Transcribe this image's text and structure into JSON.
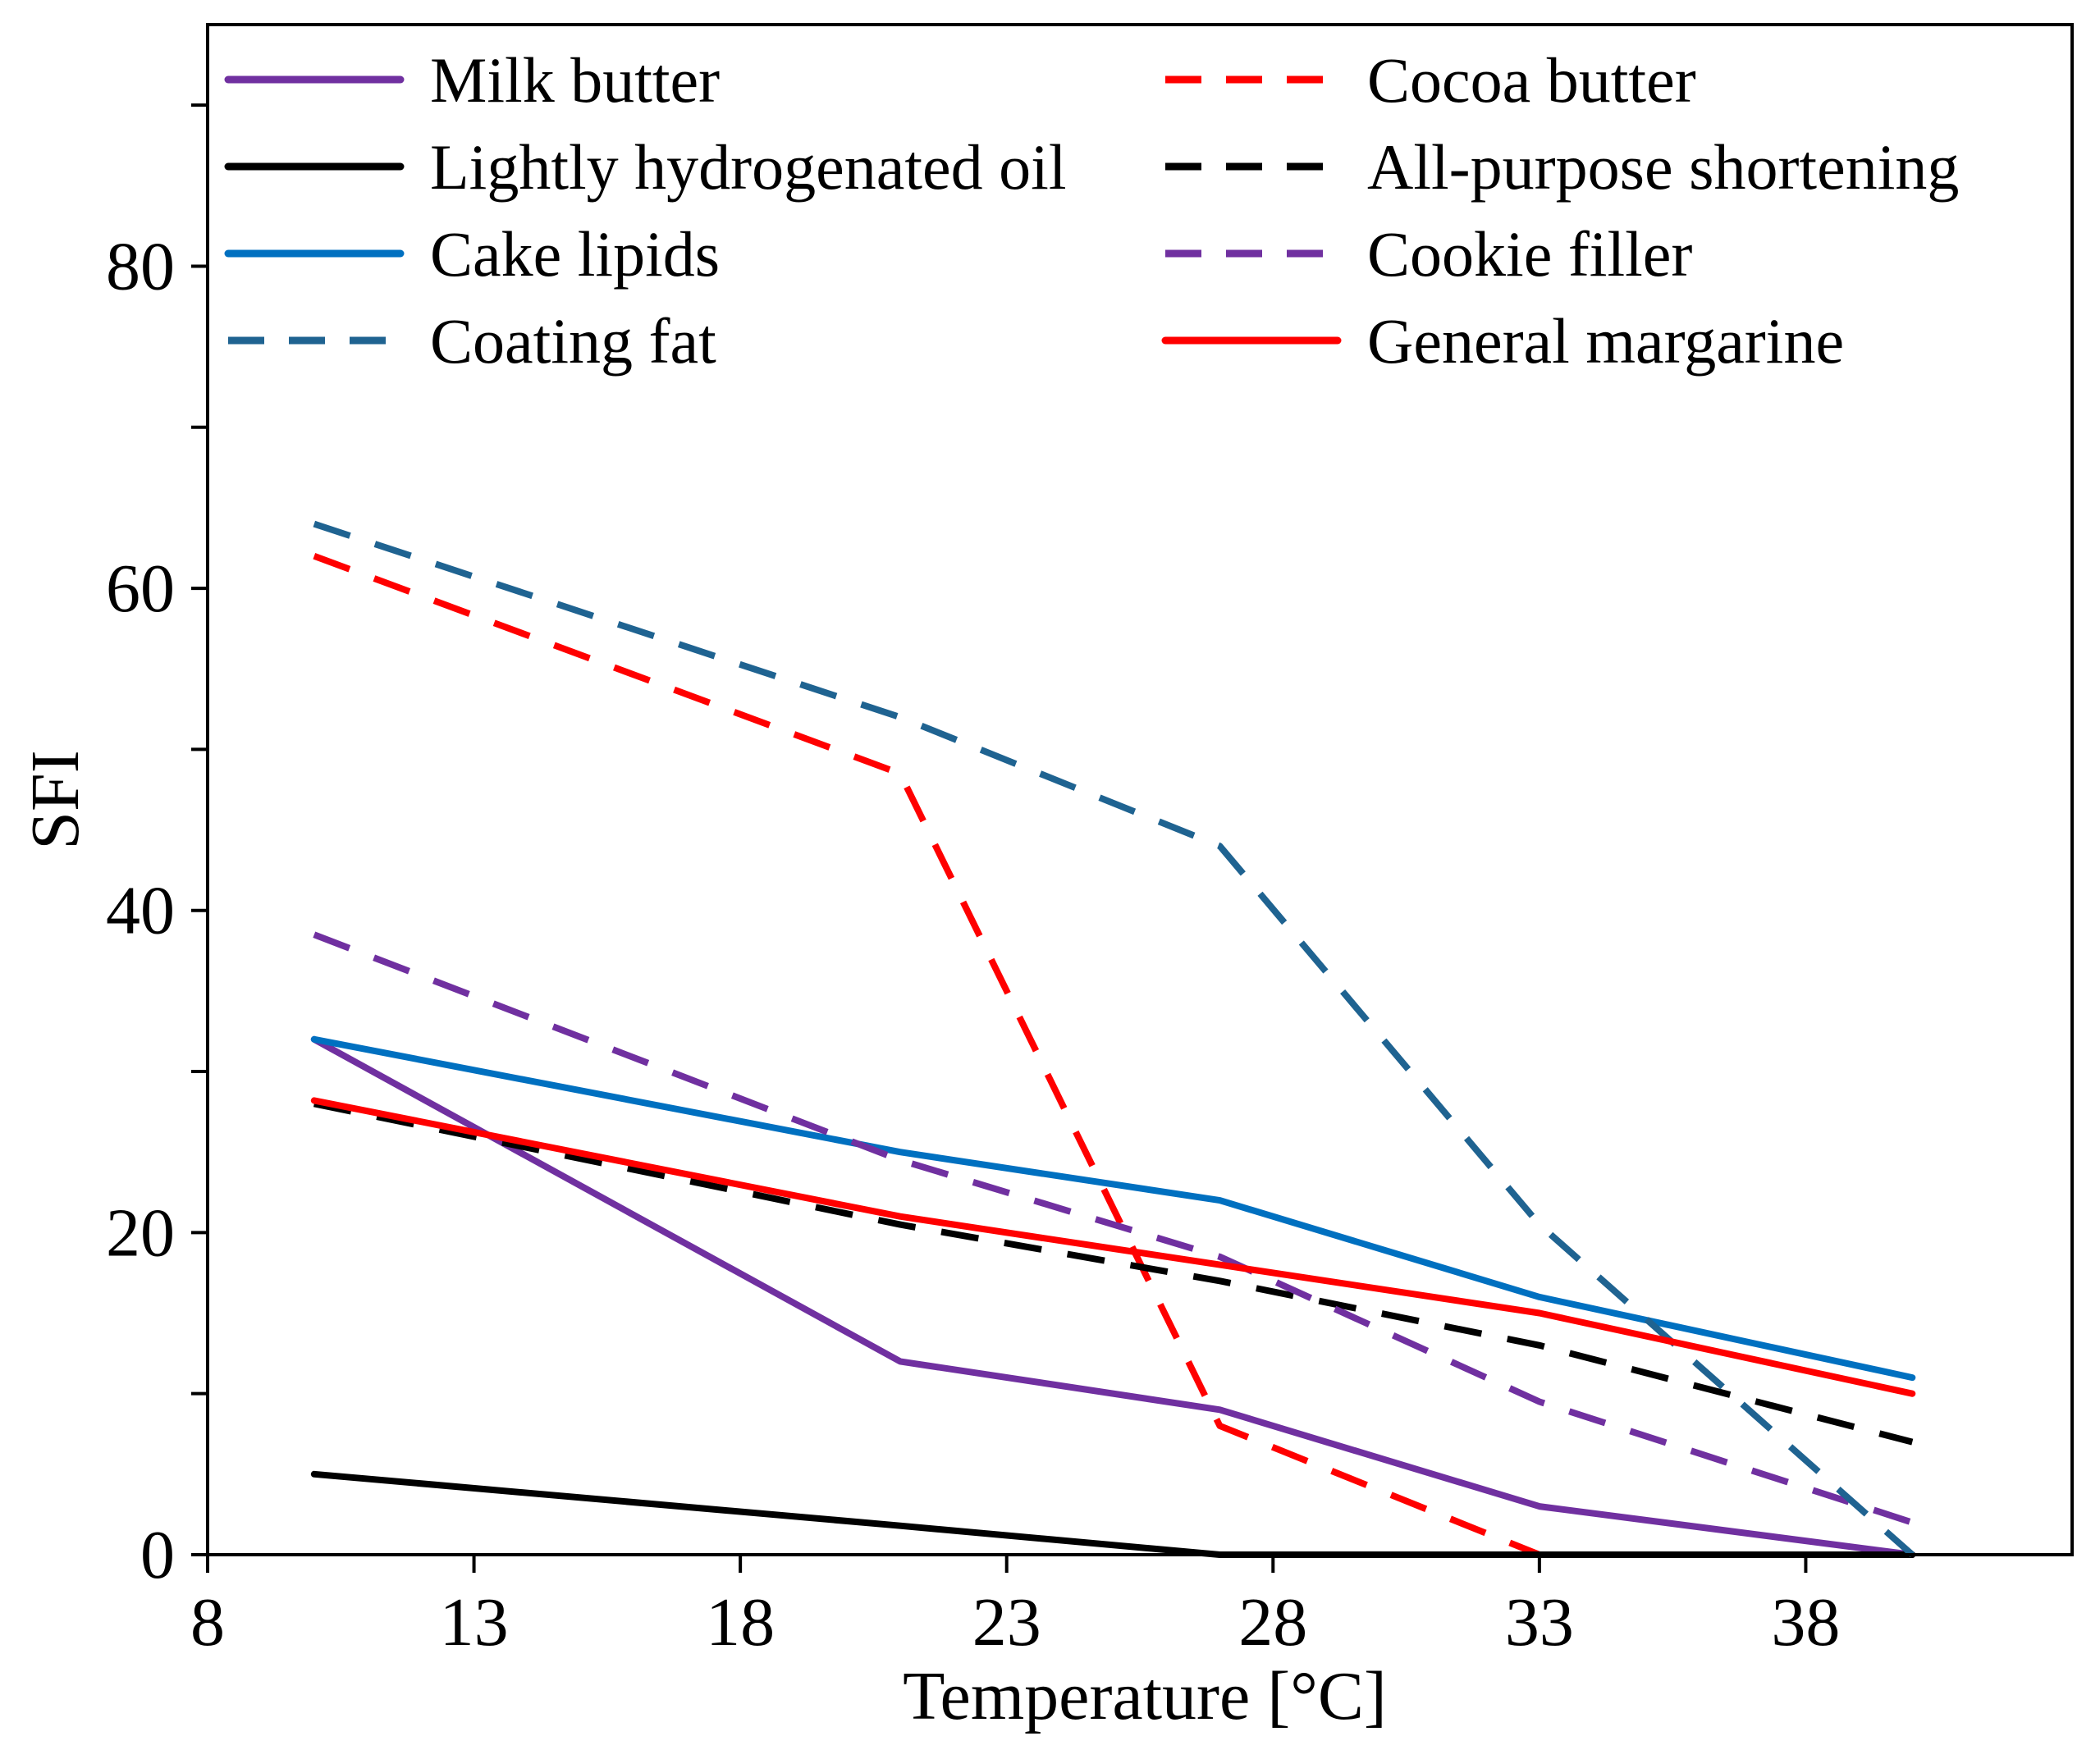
{
  "chart_data": {
    "type": "line",
    "title": "",
    "xlabel": "Temperature [°C]",
    "ylabel": "SFI",
    "xlim": [
      8,
      43
    ],
    "ylim": [
      0,
      95
    ],
    "x_ticks": [
      8,
      13,
      18,
      23,
      28,
      33,
      38
    ],
    "y_ticks": [
      0,
      20,
      40,
      60,
      80
    ],
    "y_minor_step": 10,
    "grid": false,
    "legend_position": "top",
    "series": [
      {
        "name": "Milk butter",
        "style": "solid",
        "color": "#7030A0",
        "x": [
          10,
          21,
          27,
          33,
          40
        ],
        "y": [
          32,
          12,
          9,
          3,
          0
        ]
      },
      {
        "name": "Cocoa butter",
        "style": "dashed",
        "color": "#FF0000",
        "x": [
          10,
          21,
          27,
          33
        ],
        "y": [
          62,
          48.5,
          8,
          0
        ]
      },
      {
        "name": "Lightly hydrogenated oil",
        "style": "solid",
        "color": "#000000",
        "x": [
          10,
          21,
          27,
          33,
          40
        ],
        "y": [
          5,
          1.8,
          0,
          0,
          0
        ]
      },
      {
        "name": "All-purpose shortening",
        "style": "dashed",
        "color": "#000000",
        "x": [
          10,
          21,
          27,
          33,
          40
        ],
        "y": [
          28,
          20.5,
          17,
          13,
          7
        ]
      },
      {
        "name": "Cake lipids",
        "style": "solid",
        "color": "#0070C0",
        "x": [
          10,
          21,
          27,
          33,
          40
        ],
        "y": [
          32,
          25,
          22,
          16,
          11
        ]
      },
      {
        "name": "Cookie filler",
        "style": "dashed",
        "color": "#7030A0",
        "x": [
          10,
          21,
          27,
          33,
          40
        ],
        "y": [
          38.5,
          24.5,
          18.5,
          9.5,
          2
        ]
      },
      {
        "name": "Coating fat",
        "style": "dashed",
        "color": "#1F6391",
        "x": [
          10,
          21,
          27,
          33,
          40
        ],
        "y": [
          64,
          52,
          44,
          20.5,
          0
        ]
      },
      {
        "name": "General margarine",
        "style": "solid",
        "color": "#FF0000",
        "x": [
          10,
          21,
          27,
          33,
          40
        ],
        "y": [
          28.2,
          21,
          18,
          15,
          10
        ]
      }
    ]
  }
}
